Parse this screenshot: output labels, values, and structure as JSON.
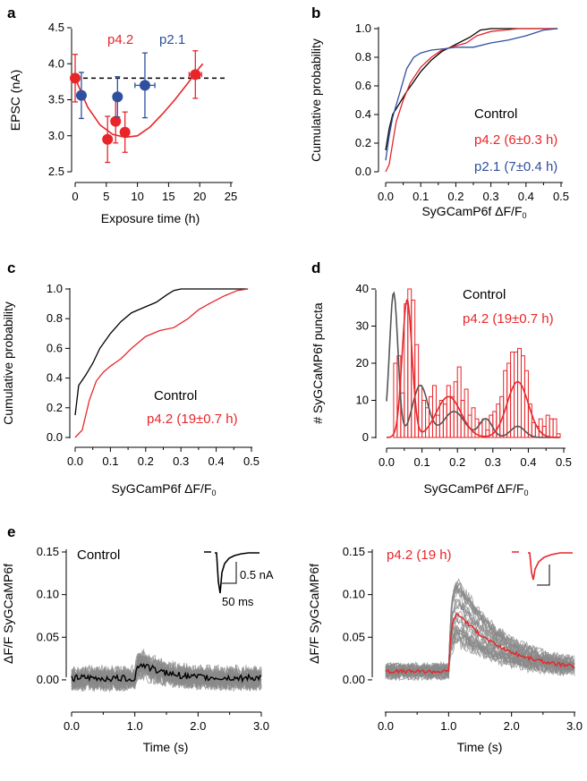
{
  "colors": {
    "red": "#e8262a",
    "blue": "#2f4f9f",
    "black": "#000000",
    "gray": "#8a8a8a",
    "darkgray": "#555555"
  },
  "chart_data": [
    {
      "panel": "a",
      "type": "scatter",
      "xlabel": "Exposure time (h)",
      "ylabel": "EPSC (nA)",
      "xlim": [
        0,
        25
      ],
      "ylim": [
        2.5,
        4.5
      ],
      "xticks": [
        "0",
        "5",
        "10",
        "15",
        "20",
        "25"
      ],
      "yticks": [
        "2.5",
        "3.0",
        "3.5",
        "4.0",
        "4.5"
      ],
      "reference_line": 3.8,
      "series": [
        {
          "name": "p4.2",
          "color": "#e8262a",
          "points": [
            {
              "x": 0.0,
              "y": 3.8,
              "yerr": 0.33,
              "xerr": 0
            },
            {
              "x": 5.2,
              "y": 2.95,
              "yerr": 0.32,
              "xerr": 0.3
            },
            {
              "x": 6.5,
              "y": 3.2,
              "yerr": 0.3,
              "xerr": 0.3
            },
            {
              "x": 8.0,
              "y": 3.05,
              "yerr": 0.28,
              "xerr": 0.4
            },
            {
              "x": 19.3,
              "y": 3.85,
              "yerr": 0.33,
              "xerr": 1.0
            }
          ]
        },
        {
          "name": "p2.1",
          "color": "#2f4f9f",
          "points": [
            {
              "x": 1.0,
              "y": 3.56,
              "yerr": 0.32,
              "xerr": 0.4
            },
            {
              "x": 6.8,
              "y": 3.54,
              "yerr": 0.28,
              "xerr": 0.3
            },
            {
              "x": 11.2,
              "y": 3.7,
              "yerr": 0.45,
              "xerr": 1.6
            }
          ]
        }
      ],
      "fit_curve": [
        [
          0,
          3.8
        ],
        [
          2,
          3.4
        ],
        [
          4,
          3.15
        ],
        [
          6,
          3.02
        ],
        [
          8,
          2.98
        ],
        [
          10,
          3.0
        ],
        [
          12,
          3.12
        ],
        [
          14,
          3.3
        ],
        [
          16,
          3.5
        ],
        [
          18,
          3.72
        ],
        [
          20,
          3.95
        ],
        [
          20.5,
          4.0
        ]
      ],
      "annotations": [
        "p4.2",
        "p2.1"
      ]
    },
    {
      "panel": "b",
      "type": "line",
      "xlabel": "SyGCamP6f ΔF/F",
      "ylabel": "Cumulative probability",
      "xlim": [
        0,
        0.5
      ],
      "ylim": [
        0,
        1.0
      ],
      "xticks": [
        "0.0",
        "0.1",
        "0.2",
        "0.3",
        "0.4",
        "0.5"
      ],
      "yticks": [
        "0.0",
        "0.2",
        "0.4",
        "0.6",
        "0.8",
        "1.0"
      ],
      "series": [
        {
          "name": "Control",
          "color": "#000000",
          "x": [
            0.0,
            0.01,
            0.02,
            0.04,
            0.06,
            0.08,
            0.1,
            0.13,
            0.16,
            0.2,
            0.24,
            0.27,
            0.3,
            0.35,
            0.4,
            0.49
          ],
          "y": [
            0.15,
            0.3,
            0.4,
            0.48,
            0.56,
            0.63,
            0.7,
            0.78,
            0.84,
            0.89,
            0.94,
            0.99,
            1.0,
            1.0,
            1.0,
            1.0
          ]
        },
        {
          "name": "p4.2 (6±0.3 h)",
          "color": "#e8262a",
          "x": [
            0.0,
            0.01,
            0.02,
            0.03,
            0.05,
            0.07,
            0.1,
            0.13,
            0.16,
            0.2,
            0.23,
            0.26,
            0.3,
            0.34,
            0.38,
            0.49
          ],
          "y": [
            0.0,
            0.05,
            0.2,
            0.35,
            0.5,
            0.62,
            0.73,
            0.8,
            0.85,
            0.88,
            0.9,
            0.95,
            0.98,
            0.99,
            1.0,
            1.0
          ]
        },
        {
          "name": "p2.1 (7±0.4 h)",
          "color": "#2f4f9f",
          "x": [
            0.0,
            0.01,
            0.02,
            0.04,
            0.06,
            0.08,
            0.1,
            0.13,
            0.17,
            0.2,
            0.25,
            0.3,
            0.35,
            0.4,
            0.45,
            0.49
          ],
          "y": [
            0.08,
            0.25,
            0.38,
            0.55,
            0.72,
            0.8,
            0.83,
            0.85,
            0.86,
            0.87,
            0.87,
            0.9,
            0.92,
            0.95,
            0.99,
            1.0
          ]
        }
      ]
    },
    {
      "panel": "c",
      "type": "line",
      "xlabel": "SyGCamP6f ΔF/F",
      "ylabel": "Cumulative probability",
      "xlim": [
        0,
        0.5
      ],
      "ylim": [
        0,
        1.0
      ],
      "xticks": [
        "0.0",
        "0.1",
        "0.2",
        "0.3",
        "0.4",
        "0.5"
      ],
      "yticks": [
        "0.0",
        "0.2",
        "0.4",
        "0.6",
        "0.8",
        "1.0"
      ],
      "series": [
        {
          "name": "Control",
          "color": "#000000",
          "x": [
            0.0,
            0.01,
            0.03,
            0.05,
            0.07,
            0.1,
            0.13,
            0.16,
            0.2,
            0.23,
            0.26,
            0.28,
            0.3,
            0.35,
            0.4,
            0.49
          ],
          "y": [
            0.15,
            0.35,
            0.42,
            0.5,
            0.6,
            0.7,
            0.78,
            0.84,
            0.88,
            0.91,
            0.96,
            0.99,
            1.0,
            1.0,
            1.0,
            1.0
          ]
        },
        {
          "name": "p4.2 (19±0.7 h)",
          "color": "#e8262a",
          "x": [
            0.0,
            0.02,
            0.04,
            0.06,
            0.08,
            0.1,
            0.13,
            0.16,
            0.2,
            0.24,
            0.28,
            0.32,
            0.35,
            0.38,
            0.42,
            0.46,
            0.49
          ],
          "y": [
            0.0,
            0.05,
            0.25,
            0.38,
            0.44,
            0.48,
            0.53,
            0.6,
            0.68,
            0.72,
            0.74,
            0.8,
            0.86,
            0.9,
            0.95,
            0.99,
            1.0
          ]
        }
      ]
    },
    {
      "panel": "d",
      "type": "bar",
      "xlabel": "SyGCamP6f ΔF/F",
      "ylabel": "# SyGCaMP6f puncta",
      "xlim": [
        0,
        0.5
      ],
      "ylim": [
        0,
        40
      ],
      "xticks": [
        "0.0",
        "0.1",
        "0.2",
        "0.3",
        "0.4",
        "0.5"
      ],
      "yticks": [
        "0",
        "10",
        "20",
        "30",
        "40"
      ],
      "bin_width": 0.01,
      "bin_start": 0.0,
      "series": [
        {
          "name": "p4.2 (19±0.7 h)",
          "color": "#e8262a",
          "values": [
            0,
            0,
            20,
            22,
            12,
            36,
            40,
            37,
            25,
            14,
            10,
            8,
            11,
            14,
            6,
            10,
            9,
            14,
            11,
            15,
            19,
            10,
            13,
            6,
            8,
            5,
            4,
            5,
            2,
            6,
            7,
            9,
            11,
            18,
            20,
            23,
            23,
            24,
            22,
            18,
            9,
            4,
            3,
            5,
            3,
            6,
            5,
            5,
            1,
            0
          ]
        }
      ],
      "fits": [
        {
          "name": "Control",
          "color": "#555555",
          "components": [
            [
              39,
              0.02,
              0.012
            ],
            [
              14,
              0.095,
              0.022
            ],
            [
              7,
              0.19,
              0.03
            ],
            [
              5,
              0.28,
              0.018
            ],
            [
              3,
              0.37,
              0.02
            ]
          ]
        },
        {
          "name": "p4.2 (19±0.7 h)",
          "color": "#e8262a",
          "components": [
            [
              37,
              0.058,
              0.014
            ],
            [
              11,
              0.175,
              0.035
            ],
            [
              15,
              0.37,
              0.03
            ]
          ]
        }
      ]
    },
    {
      "panel": "e-left",
      "type": "line",
      "title": "Control",
      "xlabel": "Time (s)",
      "ylabel": "ΔF/F SyGCaMP6f",
      "xlim": [
        0,
        3.0
      ],
      "ylim": [
        -0.02,
        0.15
      ],
      "xticks": [
        "0.0",
        "1.0",
        "2.0",
        "3.0"
      ],
      "yticks": [
        "0.00",
        "0.05",
        "0.10",
        "0.15"
      ],
      "mean_color": "#000000",
      "trace_color": "#8a8a8a",
      "stim_time": 1.0,
      "peak": 0.025,
      "decay_tau": 0.35,
      "noise": 0.011,
      "inset_scalebar": {
        "y_label": "0.5 nA",
        "x_label": "50 ms"
      }
    },
    {
      "panel": "e-right",
      "type": "line",
      "title": "p4.2 (19 h)",
      "xlabel": "Time (s)",
      "ylabel": "ΔF/F SyGCaMP6f",
      "xlim": [
        0,
        3.0
      ],
      "ylim": [
        -0.02,
        0.15
      ],
      "xticks": [
        "0.0",
        "1.0",
        "2.0",
        "3.0"
      ],
      "yticks": [
        "0.00",
        "0.05",
        "0.10",
        "0.15"
      ],
      "mean_color": "#e8262a",
      "trace_color": "#8a8a8a",
      "stim_time": 1.0,
      "peak": 0.085,
      "decay_tau": 0.75,
      "noise": 0.006
    }
  ],
  "panel_labels": [
    "a",
    "b",
    "c",
    "d",
    "e"
  ]
}
